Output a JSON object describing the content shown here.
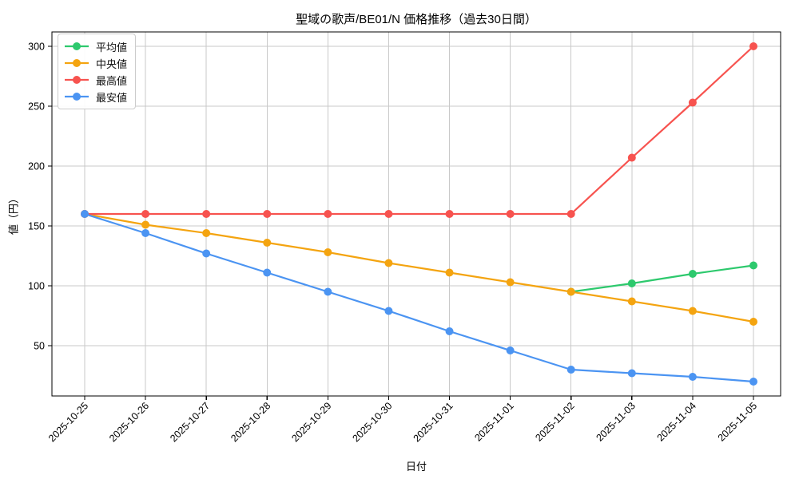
{
  "chart_data": {
    "type": "line",
    "title": "聖域の歌声/BE01/N 価格推移（過去30日間）",
    "xlabel": "日付",
    "ylabel": "値（円）",
    "x": [
      "2025-10-25",
      "2025-10-26",
      "2025-10-27",
      "2025-10-28",
      "2025-10-29",
      "2025-10-30",
      "2025-10-31",
      "2025-11-01",
      "2025-11-02",
      "2025-11-03",
      "2025-11-04",
      "2025-11-05"
    ],
    "series": [
      {
        "key": "mean",
        "name": "平均値",
        "color": "#2dc96d",
        "values": [
          null,
          null,
          null,
          null,
          null,
          null,
          null,
          null,
          95,
          102,
          110,
          117
        ]
      },
      {
        "key": "median",
        "name": "中央値",
        "color": "#f4a410",
        "values": [
          160,
          151,
          144,
          136,
          128,
          119,
          111,
          103,
          95,
          87,
          79,
          70
        ]
      },
      {
        "key": "max",
        "name": "最高値",
        "color": "#f7534f",
        "values": [
          160,
          160,
          160,
          160,
          160,
          160,
          160,
          160,
          160,
          207,
          253,
          300
        ]
      },
      {
        "key": "min",
        "name": "最安値",
        "color": "#4b94f2",
        "values": [
          160,
          144,
          127,
          111,
          95,
          79,
          62,
          46,
          30,
          27,
          24,
          20
        ]
      }
    ],
    "yticks": [
      50,
      100,
      150,
      200,
      250,
      300
    ],
    "ylim": [
      8,
      312
    ],
    "grid": true,
    "legend_position": "upper-left",
    "grid_color": "#c9c9c9",
    "axis_color": "#000000",
    "background": "#ffffff"
  }
}
